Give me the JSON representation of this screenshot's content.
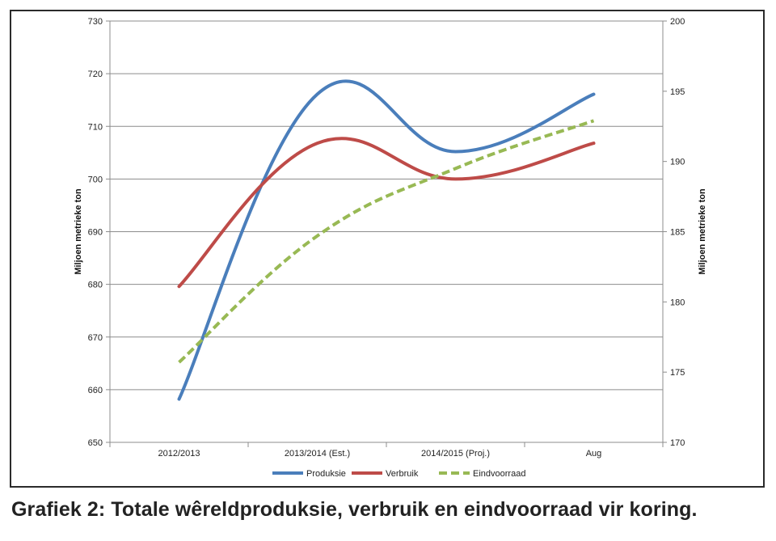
{
  "caption": "Grafiek 2: Totale wêreldproduksie, verbruik en eindvoorraad vir koring.",
  "chart_data": {
    "type": "line",
    "categories": [
      "2012/2013",
      "2013/2014 (Est.)",
      "2014/2015 (Proj.)",
      "Aug"
    ],
    "y_left": {
      "label": "Miljoen metrieke ton",
      "min": 650,
      "max": 730,
      "step": 10,
      "ticks": [
        "650",
        "660",
        "670",
        "680",
        "690",
        "700",
        "710",
        "720",
        "730"
      ]
    },
    "y_right": {
      "label": "Miljoen metrieke ton",
      "min": 170,
      "max": 200,
      "step": 5,
      "ticks": [
        "170",
        "175",
        "180",
        "185",
        "190",
        "195",
        "200"
      ]
    },
    "grid": true,
    "legend_position": "bottom",
    "series": [
      {
        "name": "Produksie",
        "axis": "left",
        "color": "#4a7ebb",
        "dashed": false,
        "values": [
          658.2,
          716.1,
          705.2,
          716.1
        ]
      },
      {
        "name": "Verbruik",
        "axis": "left",
        "color": "#be4b48",
        "dashed": false,
        "values": [
          679.6,
          706.8,
          700.0,
          706.8
        ]
      },
      {
        "name": "Eindvoorraad",
        "axis": "right",
        "color": "#98b954",
        "dashed": true,
        "values": [
          175.7,
          184.7,
          189.5,
          192.9
        ]
      }
    ]
  }
}
